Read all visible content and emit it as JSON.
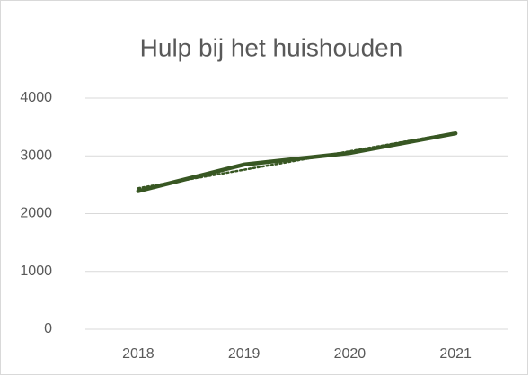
{
  "chart_data": {
    "type": "line",
    "title": "Hulp bij het huishouden",
    "categories": [
      "2018",
      "2019",
      "2020",
      "2021"
    ],
    "series": [
      {
        "color": "#385723",
        "values": [
          2390,
          2850,
          3050,
          3390
        ]
      }
    ],
    "trendline": {
      "color": "#385723",
      "values": [
        2440,
        2760,
        3080,
        3400
      ]
    },
    "ylim": [
      0,
      4000
    ],
    "yticks": [
      0,
      1000,
      2000,
      3000,
      4000
    ],
    "grid": true
  }
}
